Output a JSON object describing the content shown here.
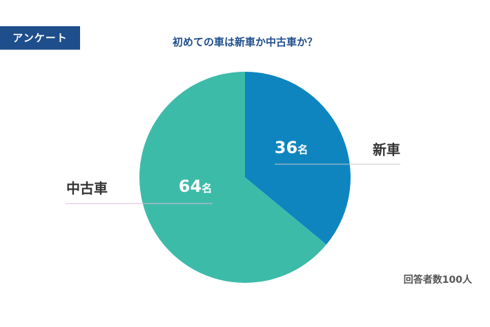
{
  "badge": {
    "label": "アンケート"
  },
  "colors": {
    "badge": "#1f4e8c",
    "title": "#1f4e8c",
    "slice_new": "#0e85bf",
    "slice_used": "#3dbba9",
    "label_text": "#333333"
  },
  "footnote": "回答者数100人",
  "chart_data": {
    "type": "pie",
    "title": "初めての車は新車か中古車か？",
    "total_label": "回答者数100人",
    "slices": [
      {
        "label": "新車",
        "value": 36,
        "unit": "名",
        "display": "36名"
      },
      {
        "label": "中古車",
        "value": 64,
        "unit": "名",
        "display": "64名"
      }
    ]
  }
}
